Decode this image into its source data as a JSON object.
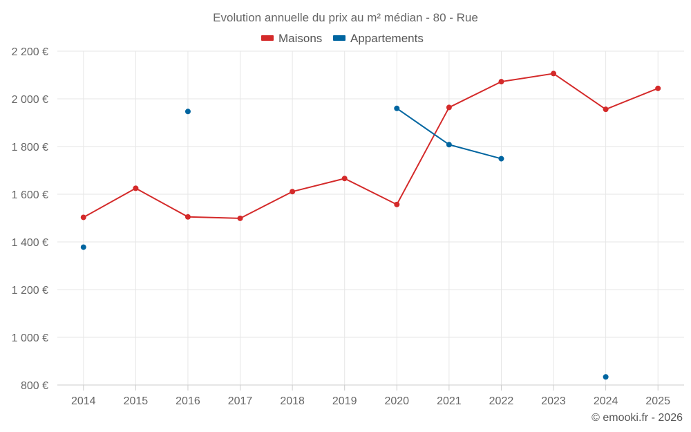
{
  "chart_data": {
    "type": "line",
    "title": "Evolution annuelle du prix au m² médian - 80 - Rue",
    "xlabel": "",
    "ylabel": "",
    "categories": [
      "2014",
      "2015",
      "2016",
      "2017",
      "2018",
      "2019",
      "2020",
      "2021",
      "2022",
      "2023",
      "2024",
      "2025"
    ],
    "ylim": [
      800,
      2200
    ],
    "yticks": [
      800,
      1000,
      1200,
      1400,
      1600,
      1800,
      2000,
      2200
    ],
    "ytick_labels": [
      "800 €",
      "1 000 €",
      "1 200 €",
      "1 400 €",
      "1 600 €",
      "1 800 €",
      "2 000 €",
      "2 200 €"
    ],
    "grid": true,
    "legend_position": "top-center",
    "series": [
      {
        "name": "Maisons",
        "color": "#d42a2a",
        "values": [
          1503,
          1625,
          1505,
          1499,
          1611,
          1666,
          1557,
          1964,
          2072,
          2106,
          1956,
          2044
        ]
      },
      {
        "name": "Appartements",
        "color": "#0065a0",
        "values": [
          1378,
          null,
          1947,
          null,
          null,
          null,
          1960,
          1808,
          1749,
          null,
          834,
          null
        ]
      }
    ],
    "credit": "© emooki.fr - 2026"
  }
}
